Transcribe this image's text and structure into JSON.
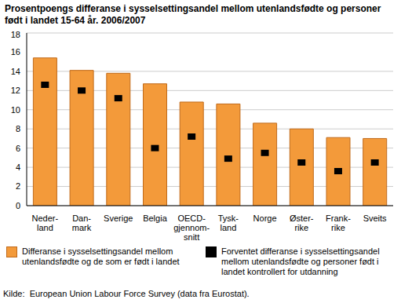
{
  "chart_data": {
    "type": "bar",
    "title": "Prosentpoengs differanse i sysselsettingsandel mellom utenlandsfødte og personer født i landet 15-64 år. 2006/2007",
    "categories": [
      "Neder-\nland",
      "Dan-\nmark",
      "Sverige",
      "Belgia",
      "OECD-\ngjennom-\nsnitt",
      "Tysk-\nland",
      "Norge",
      "Øster-\nrike",
      "Frank-\nrike",
      "Sveits"
    ],
    "series": [
      {
        "name": "Differanse i sysselsettingsandel mellom utenlandsfødte og de som er født i landet",
        "type": "bar",
        "color": "#f39a3a",
        "values": [
          15.4,
          14.1,
          13.8,
          12.7,
          10.8,
          10.6,
          8.6,
          8.0,
          7.1,
          7.0
        ]
      },
      {
        "name": "Forventet differanse i sysselsettingsandel mellom utenlandsfødte og personer født i landet kontrollert for utdanning",
        "type": "scatter",
        "marker": "square",
        "color": "#000000",
        "values": [
          12.6,
          12.0,
          11.2,
          6.0,
          7.2,
          4.9,
          5.5,
          4.5,
          3.6,
          4.5
        ]
      }
    ],
    "ylim": [
      0,
      18
    ],
    "yticks": [
      0,
      2,
      4,
      6,
      8,
      10,
      12,
      14,
      16,
      18
    ],
    "grid": true,
    "source": "Kilde:  European Union Labour Force Survey (data fra Eurostat)."
  }
}
